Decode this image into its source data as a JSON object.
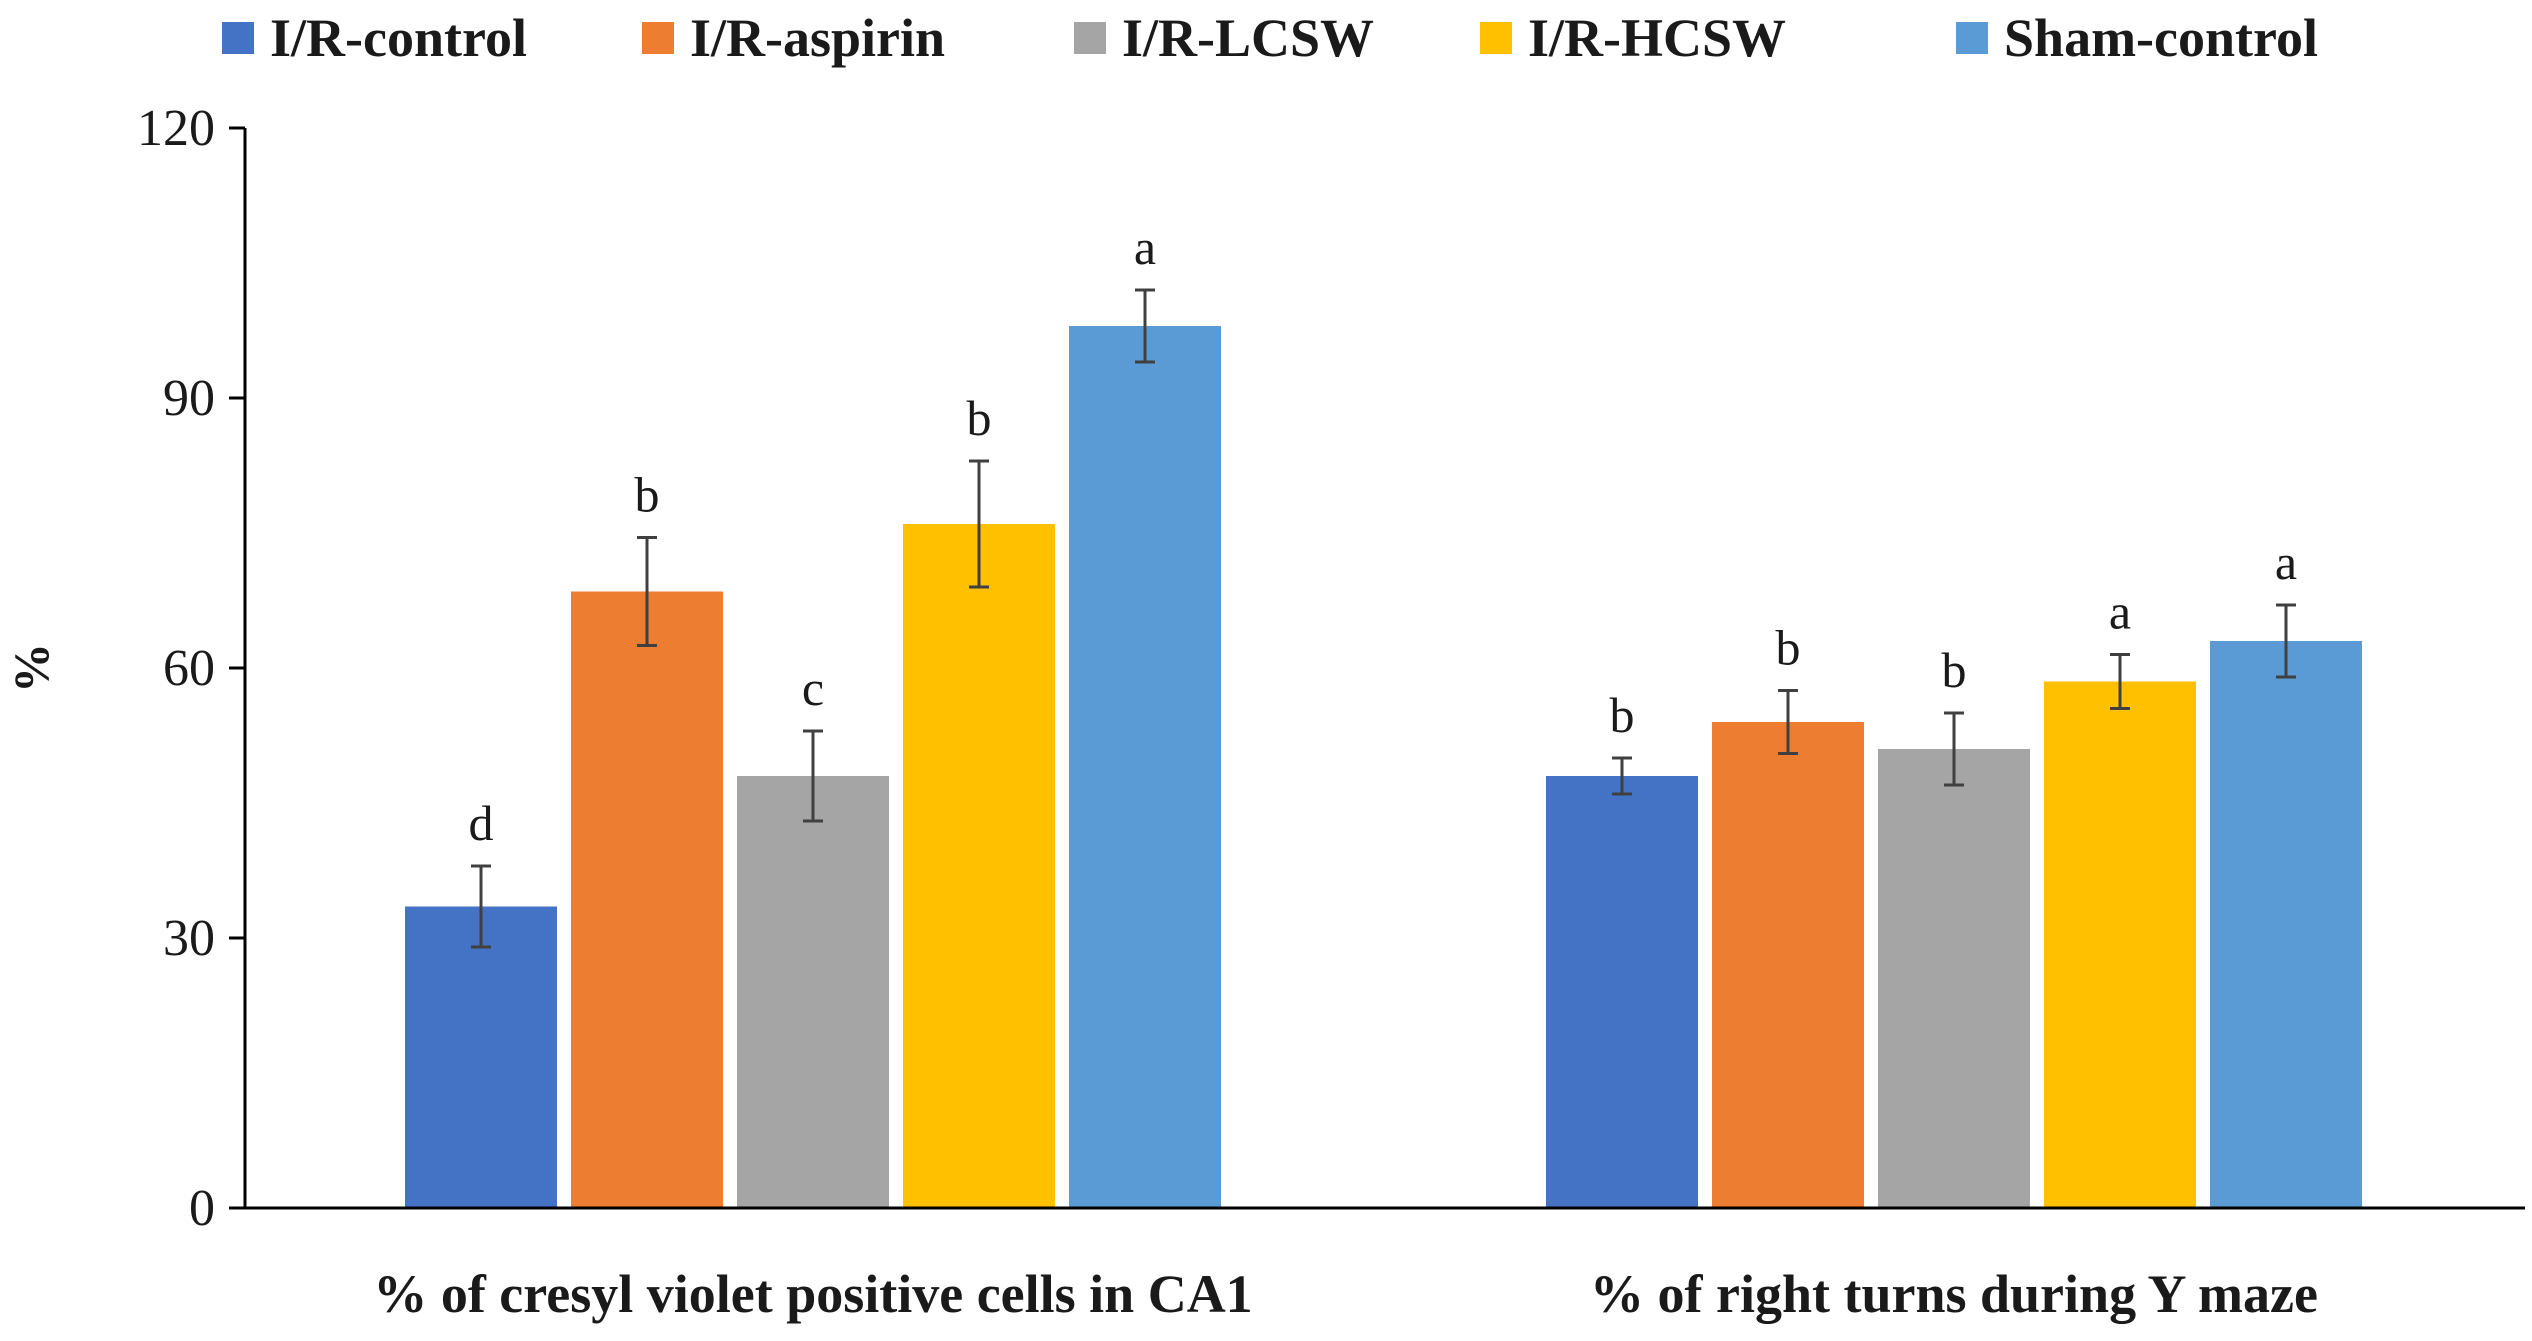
{
  "chart_data": {
    "type": "bar",
    "title": "",
    "xlabel": "",
    "ylabel": "%",
    "ylim": [
      0,
      120
    ],
    "yticks": [
      0,
      30,
      60,
      90,
      120
    ],
    "grid": false,
    "legend_position": "top",
    "categories": [
      "% of cresyl violet positive cells in CA1",
      "% of right turns during Y maze"
    ],
    "series": [
      {
        "name": "I/R-control",
        "color": "#4472C4",
        "values": [
          33.5,
          48.0
        ],
        "errors": [
          4.5,
          2.0
        ],
        "letters": [
          "d",
          "b"
        ]
      },
      {
        "name": "I/R-aspirin",
        "color": "#ED7D31",
        "values": [
          68.5,
          54.0
        ],
        "errors": [
          6.0,
          3.5
        ],
        "letters": [
          "b",
          "b"
        ]
      },
      {
        "name": "I/R-LCSW",
        "color": "#A5A5A5",
        "values": [
          48.0,
          51.0
        ],
        "errors": [
          5.0,
          4.0
        ],
        "letters": [
          "c",
          "b"
        ]
      },
      {
        "name": "I/R-HCSW",
        "color": "#FFC000",
        "values": [
          76.0,
          58.5
        ],
        "errors": [
          7.0,
          3.0
        ],
        "letters": [
          "b",
          "a"
        ]
      },
      {
        "name": "Sham-control",
        "color": "#5B9BD5",
        "values": [
          98.0,
          63.0
        ],
        "errors": [
          4.0,
          4.0
        ],
        "letters": [
          "a",
          "a"
        ]
      }
    ]
  }
}
